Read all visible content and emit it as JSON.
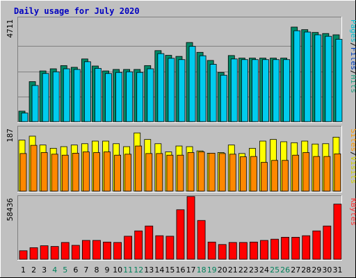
{
  "chart_data": {
    "type": "bar",
    "title": "Daily usage for July 2020",
    "categories": [
      "1",
      "2",
      "3",
      "4",
      "5",
      "6",
      "7",
      "8",
      "9",
      "10",
      "11",
      "12",
      "13",
      "14",
      "15",
      "16",
      "17",
      "18",
      "19",
      "20",
      "21",
      "22",
      "23",
      "24",
      "25",
      "26",
      "27",
      "28",
      "29",
      "30",
      "31"
    ],
    "weekend_days": [
      "4",
      "5",
      "11",
      "12",
      "18",
      "19",
      "25",
      "26"
    ],
    "panels": [
      {
        "name": "top",
        "ymax_label": "4711",
        "ylim": [
          0,
          4711
        ],
        "right_label": [
          {
            "text": "Pages",
            "color": "#00c0d0"
          },
          {
            "text": "/",
            "color": "#000000"
          },
          {
            "text": "Files",
            "color": "#0040c0"
          },
          {
            "text": "/",
            "color": "#000000"
          },
          {
            "text": "Hits",
            "color": "#20a080"
          }
        ],
        "series": [
          {
            "name": "Hits",
            "color": "#008866",
            "values": [
              490,
              1870,
              2370,
              2470,
              2620,
              2540,
              2930,
              2600,
              2370,
              2440,
              2440,
              2440,
              2620,
              3320,
              3100,
              3050,
              3700,
              3240,
              2860,
              2300,
              3090,
              2970,
              2970,
              2970,
              2970,
              2970,
              4420,
              4300,
              4170,
              4120,
              4060
            ]
          },
          {
            "name": "Files",
            "color": "#0030c0",
            "values": [
              0,
              0,
              0,
              0,
              0,
              0,
              0,
              0,
              0,
              0,
              0,
              0,
              0,
              0,
              0,
              0,
              0,
              0,
              0,
              0,
              0,
              0,
              0,
              0,
              0,
              0,
              0,
              0,
              0,
              0,
              0
            ]
          },
          {
            "name": "Pages",
            "color": "#00ccee",
            "values": [
              400,
              1690,
              2250,
              2330,
              2470,
              2440,
              2800,
              2490,
              2250,
              2300,
              2330,
              2300,
              2470,
              3180,
              2960,
              2900,
              3520,
              3080,
              2680,
              2170,
              2930,
              2900,
              2900,
              2900,
              2900,
              2900,
              4250,
              4190,
              4060,
              3990,
              3850
            ]
          }
        ]
      },
      {
        "name": "middle",
        "ymax_label": "187",
        "ylim": [
          0,
          187
        ],
        "right_label": [
          {
            "text": "Sites",
            "color": "#ff9900"
          },
          {
            "text": "/",
            "color": "#000000"
          },
          {
            "text": "Visits",
            "color": "#d0d000"
          }
        ],
        "series": [
          {
            "name": "Visits",
            "color": "#ffff00",
            "values": [
              156,
              168,
              141,
              131,
              136,
              141,
              145,
              153,
              153,
              145,
              136,
              178,
              158,
              145,
              120,
              138,
              136,
              123,
              116,
              118,
              141,
              115,
              131,
              153,
              158,
              151,
              148,
              153,
              144,
              145,
              165
            ]
          },
          {
            "name": "Sites",
            "color": "#ff8800",
            "values": [
              115,
              140,
              118,
              113,
              110,
              116,
              120,
              118,
              120,
              110,
              113,
              138,
              115,
              115,
              110,
              110,
              118,
              120,
              116,
              115,
              113,
              105,
              106,
              88,
              94,
              94,
              110,
              118,
              106,
              106,
              114
            ]
          }
        ]
      },
      {
        "name": "bottom",
        "ymax_label": "58436",
        "ylim": [
          0,
          58436
        ],
        "right_label": [
          {
            "text": "KBytes",
            "color": "#ff3030"
          }
        ],
        "series": [
          {
            "name": "KBytes",
            "color": "#ff0000",
            "values": [
              8300,
              11300,
              13200,
              12500,
              16400,
              13600,
              18400,
              18400,
              16800,
              16400,
              22500,
              27700,
              32500,
              23000,
              22500,
              48400,
              61300,
              37900,
              16800,
              14400,
              16400,
              16400,
              16800,
              18400,
              19600,
              21500,
              21500,
              23000,
              27700,
              32500,
              53900
            ]
          }
        ]
      }
    ]
  }
}
